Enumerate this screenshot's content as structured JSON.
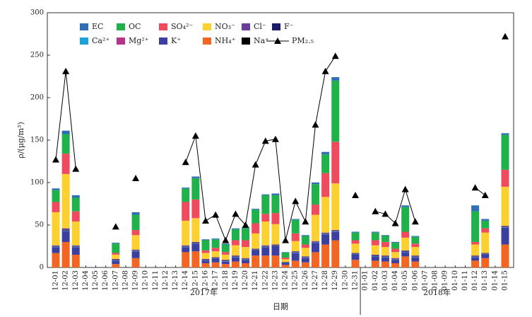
{
  "chart_data": {
    "type": "bar",
    "stacked": true,
    "x_label": "日期",
    "y_label": "ρ/(μg/m³)",
    "x_groups": [
      "2017年",
      "2018年"
    ],
    "categories": [
      "12-01",
      "12-02",
      "12-03",
      "12-04",
      "12-05",
      "12-06",
      "12-07",
      "12-08",
      "12-09",
      "12-10",
      "12-11",
      "12-12",
      "12-13",
      "12-14",
      "12-15",
      "12-16",
      "12-17",
      "12-18",
      "12-19",
      "12-20",
      "12-21",
      "12-22",
      "12-23",
      "12-24",
      "12-25",
      "12-26",
      "12-27",
      "12-28",
      "12-29",
      "12-30",
      "12-31",
      "01-01",
      "01-02",
      "01-03",
      "01-04",
      "01-05",
      "01-06",
      "01-07",
      "01-08",
      "01-09",
      "01-10",
      "01-11",
      "01-12",
      "01-13",
      "01-14",
      "01-15"
    ],
    "ylim": [
      0,
      300
    ],
    "yticks": [
      0,
      50,
      100,
      150,
      200,
      250,
      300
    ],
    "series": [
      {
        "name": "EC",
        "color": "#2f6db5",
        "values": [
          2,
          4,
          3,
          null,
          null,
          null,
          1,
          null,
          3,
          null,
          null,
          null,
          null,
          1,
          2,
          1,
          1,
          1,
          1,
          1,
          1,
          1,
          2,
          0.5,
          1,
          1,
          2,
          3,
          4,
          null,
          1,
          null,
          1,
          1,
          1,
          2,
          1,
          null,
          null,
          null,
          null,
          null,
          7,
          2,
          null,
          2
        ]
      },
      {
        "name": "OC",
        "color": "#1fb24a",
        "values": [
          14,
          23,
          16,
          null,
          null,
          null,
          11,
          null,
          18,
          null,
          null,
          null,
          null,
          16,
          25,
          12,
          10,
          9,
          13,
          14,
          16,
          22,
          21,
          6,
          16,
          10,
          24,
          22,
          72,
          null,
          9,
          null,
          9,
          7,
          7,
          29,
          8,
          null,
          null,
          null,
          null,
          null,
          36,
          9,
          null,
          41
        ]
      },
      {
        "name": "SO₄²⁻",
        "color": "#ef4a5e",
        "values": [
          12,
          24,
          12,
          null,
          null,
          null,
          2,
          null,
          6,
          null,
          null,
          null,
          null,
          22,
          22,
          3,
          4,
          3,
          6,
          8,
          12,
          9,
          13,
          2,
          9,
          4,
          12,
          28,
          49,
          null,
          4,
          null,
          6,
          6,
          4,
          7,
          4,
          null,
          null,
          null,
          null,
          null,
          3,
          5,
          null,
          20
        ]
      },
      {
        "name": "NO₃⁻",
        "color": "#fcd12f",
        "values": [
          39,
          64,
          28,
          null,
          null,
          null,
          5,
          null,
          17,
          null,
          null,
          null,
          null,
          29,
          28,
          7,
          7,
          6,
          12,
          13,
          18,
          28,
          24,
          3,
          12,
          10,
          31,
          42,
          55,
          null,
          11,
          null,
          11,
          10,
          7,
          15,
          10,
          null,
          null,
          null,
          null,
          null,
          13,
          24,
          null,
          46
        ]
      },
      {
        "name": "Cl⁻",
        "color": "#6a3d9a",
        "values": [
          1,
          2,
          1,
          null,
          null,
          null,
          1,
          null,
          1,
          null,
          null,
          null,
          null,
          1,
          1,
          1,
          1,
          1,
          1,
          1,
          1,
          1,
          1,
          0.5,
          1,
          1,
          1,
          1,
          1,
          null,
          1,
          null,
          1,
          1,
          1,
          1,
          1,
          null,
          null,
          null,
          null,
          null,
          1,
          1,
          null,
          1
        ]
      },
      {
        "name": "F⁻",
        "color": "#1b1b6b",
        "values": [
          0.3,
          0.3,
          0.3,
          null,
          null,
          null,
          0.3,
          null,
          0.3,
          null,
          null,
          null,
          null,
          0.3,
          0.3,
          0.3,
          0.3,
          0.3,
          0.3,
          0.3,
          0.3,
          0.3,
          0.3,
          0.3,
          0.3,
          0.3,
          0.3,
          0.3,
          0.3,
          null,
          0.3,
          null,
          0.3,
          0.3,
          0.3,
          0.3,
          0.3,
          null,
          null,
          null,
          null,
          null,
          0.3,
          0.3,
          null,
          0.3
        ]
      },
      {
        "name": "Ca²⁺",
        "color": "#1ba1d9",
        "values": [
          0.4,
          0.4,
          0.4,
          null,
          null,
          null,
          0.4,
          null,
          0.4,
          null,
          null,
          null,
          null,
          0.4,
          0.4,
          0.4,
          0.4,
          0.4,
          0.4,
          0.4,
          0.4,
          0.4,
          0.4,
          0.4,
          0.4,
          0.4,
          0.4,
          0.4,
          0.4,
          null,
          0.4,
          null,
          0.4,
          0.4,
          0.4,
          0.4,
          0.4,
          null,
          null,
          null,
          null,
          null,
          0.4,
          0.4,
          null,
          0.4
        ]
      },
      {
        "name": "Mg²⁺",
        "color": "#b5338a",
        "values": [
          0.1,
          0.1,
          0.1,
          null,
          null,
          null,
          0.1,
          null,
          0.1,
          null,
          null,
          null,
          null,
          0.1,
          0.1,
          0.1,
          0.1,
          0.1,
          0.1,
          0.1,
          0.1,
          0.1,
          0.1,
          0.1,
          0.1,
          0.1,
          0.1,
          0.1,
          0.1,
          null,
          0.1,
          null,
          0.1,
          0.1,
          0.1,
          0.1,
          0.1,
          null,
          null,
          null,
          null,
          null,
          0.1,
          0.1,
          null,
          0.1
        ]
      },
      {
        "name": "K⁺",
        "color": "#3a3fa0",
        "values": [
          7,
          13,
          9,
          null,
          null,
          null,
          4,
          null,
          8,
          null,
          null,
          null,
          null,
          6,
          9,
          3,
          4,
          3,
          5,
          4,
          6,
          10,
          11,
          2,
          9,
          5,
          11,
          12,
          10,
          null,
          6,
          null,
          5,
          5,
          4,
          5,
          5,
          null,
          null,
          null,
          null,
          null,
          4,
          4,
          null,
          20
        ]
      },
      {
        "name": "NH₄⁺",
        "color": "#f26522",
        "values": [
          17,
          30,
          15,
          null,
          null,
          null,
          4,
          null,
          11,
          null,
          null,
          null,
          null,
          18,
          19,
          5,
          6,
          4,
          7,
          5,
          14,
          14,
          14,
          3,
          8,
          6,
          18,
          27,
          32,
          null,
          9,
          null,
          8,
          7,
          5,
          13,
          7,
          null,
          null,
          null,
          null,
          null,
          8,
          11,
          null,
          27
        ]
      },
      {
        "name": "Na⁺",
        "color": "#000000",
        "values": [
          0.3,
          0.3,
          0.3,
          null,
          null,
          null,
          0.3,
          null,
          0.3,
          null,
          null,
          null,
          null,
          0.3,
          0.3,
          0.3,
          0.3,
          0.3,
          0.3,
          0.3,
          0.3,
          0.3,
          0.3,
          0.3,
          0.3,
          0.3,
          0.3,
          0.3,
          0.3,
          null,
          0.3,
          null,
          0.3,
          0.3,
          0.3,
          0.3,
          0.3,
          null,
          null,
          null,
          null,
          null,
          0.3,
          0.3,
          null,
          0.3
        ]
      },
      {
        "name": "PM₂.₅",
        "type": "line",
        "color": "#000000",
        "values": [
          127,
          231,
          116,
          null,
          null,
          null,
          48,
          null,
          105,
          null,
          null,
          null,
          null,
          124,
          155,
          55,
          62,
          32,
          63,
          50,
          121,
          149,
          151,
          32,
          78,
          54,
          168,
          231,
          249,
          null,
          85,
          null,
          66,
          63,
          52,
          92,
          54,
          null,
          null,
          null,
          null,
          null,
          94,
          85,
          null,
          272
        ]
      }
    ]
  }
}
